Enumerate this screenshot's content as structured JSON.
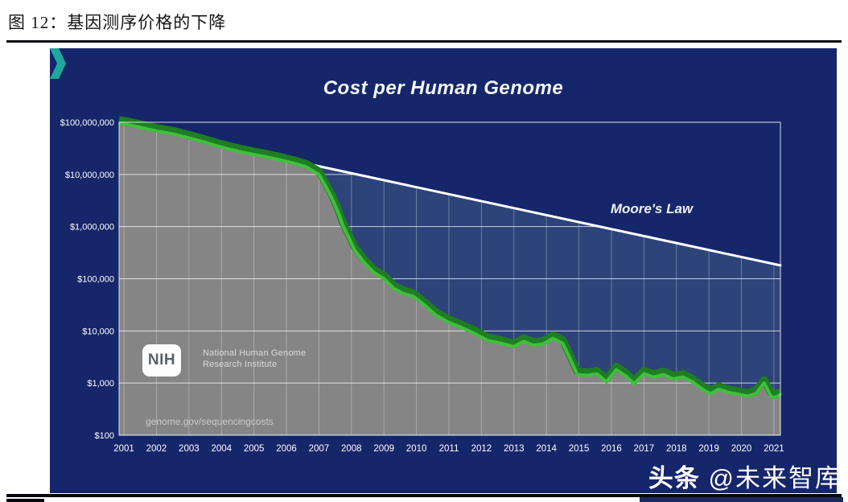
{
  "figure": {
    "label_title": "图 12：基因测序价格的下降"
  },
  "watermark": {
    "part1": "头条",
    "part2": " @未来智库"
  },
  "chart_data": {
    "type": "area",
    "title": "Cost per Human Genome",
    "y_scale": "log",
    "grid": true,
    "legend": false,
    "xlim": [
      2000.85,
      2021.2
    ],
    "ylim": [
      100,
      100000000
    ],
    "x_ticks": [
      "2001",
      "2002",
      "2003",
      "2004",
      "2005",
      "2006",
      "2007",
      "2008",
      "2009",
      "2010",
      "2011",
      "2012",
      "2013",
      "2014",
      "2015",
      "2016",
      "2017",
      "2018",
      "2019",
      "2020",
      "2021"
    ],
    "y_ticks": [
      {
        "label": "$100,000,000",
        "value": 100000000
      },
      {
        "label": "$10,000,000",
        "value": 10000000
      },
      {
        "label": "$1,000,000",
        "value": 1000000
      },
      {
        "label": "$100,000",
        "value": 100000
      },
      {
        "label": "$10,000",
        "value": 10000
      },
      {
        "label": "$1,000",
        "value": 1000
      },
      {
        "label": "$100",
        "value": 100
      }
    ],
    "series": [
      {
        "name": "Cost per Human Genome",
        "type": "line+area",
        "color_line": "#40bf3c",
        "color_line_dark": "#1f7d24",
        "fill_below": "#858585",
        "points": [
          [
            2000.85,
            95000000
          ],
          [
            2001.0,
            93000000
          ],
          [
            2001.5,
            80000000
          ],
          [
            2002.0,
            68000000
          ],
          [
            2002.5,
            60000000
          ],
          [
            2003.0,
            50000000
          ],
          [
            2003.45,
            42000000
          ],
          [
            2003.8,
            36000000
          ],
          [
            2004.2,
            31000000
          ],
          [
            2004.6,
            27000000
          ],
          [
            2005.0,
            24000000
          ],
          [
            2005.4,
            21500000
          ],
          [
            2005.8,
            19000000
          ],
          [
            2006.2,
            16500000
          ],
          [
            2006.6,
            14000000
          ],
          [
            2007.0,
            10000000
          ],
          [
            2007.2,
            6000000
          ],
          [
            2007.4,
            3500000
          ],
          [
            2007.6,
            1800000
          ],
          [
            2007.75,
            1000000
          ],
          [
            2007.9,
            650000
          ],
          [
            2008.1,
            350000
          ],
          [
            2008.4,
            200000
          ],
          [
            2008.7,
            130000
          ],
          [
            2009.0,
            100000
          ],
          [
            2009.3,
            65000
          ],
          [
            2009.6,
            52000
          ],
          [
            2009.9,
            46000
          ],
          [
            2010.2,
            33000
          ],
          [
            2010.6,
            20000
          ],
          [
            2011.0,
            14500
          ],
          [
            2011.4,
            11500
          ],
          [
            2011.8,
            8800
          ],
          [
            2012.2,
            6500
          ],
          [
            2012.6,
            5800
          ],
          [
            2013.0,
            5000
          ],
          [
            2013.3,
            6300
          ],
          [
            2013.6,
            5300
          ],
          [
            2013.9,
            5600
          ],
          [
            2014.2,
            7200
          ],
          [
            2014.5,
            5800
          ],
          [
            2014.7,
            3200
          ],
          [
            2014.95,
            1450
          ],
          [
            2015.25,
            1400
          ],
          [
            2015.55,
            1500
          ],
          [
            2015.85,
            1050
          ],
          [
            2016.15,
            1800
          ],
          [
            2016.45,
            1350
          ],
          [
            2016.7,
            970
          ],
          [
            2017.0,
            1500
          ],
          [
            2017.3,
            1300
          ],
          [
            2017.6,
            1450
          ],
          [
            2017.9,
            1200
          ],
          [
            2018.2,
            1300
          ],
          [
            2018.5,
            1050
          ],
          [
            2018.8,
            760
          ],
          [
            2019.05,
            620
          ],
          [
            2019.3,
            760
          ],
          [
            2019.6,
            660
          ],
          [
            2019.9,
            610
          ],
          [
            2020.2,
            560
          ],
          [
            2020.45,
            630
          ],
          [
            2020.7,
            1000
          ],
          [
            2020.9,
            570
          ],
          [
            2021.0,
            520
          ],
          [
            2021.2,
            600
          ]
        ]
      },
      {
        "name": "Moore's Law",
        "type": "line",
        "color": "#ffffff",
        "fill_between_cost": "#2e4379",
        "points": [
          [
            2003.45,
            43000000
          ],
          [
            2021.2,
            180000
          ]
        ]
      }
    ],
    "annotations": {
      "moores_law_label": "Moore's Law",
      "source_text": "genome.gov/sequencingcosts"
    },
    "logo": {
      "acronym": "NIH",
      "line1": "National Human Genome",
      "line2": "Research Institute"
    },
    "colors": {
      "panel_bg": "#16266a",
      "fill_gray": "#858585",
      "fill_blue": "#2e4379",
      "grid": "#ffffff",
      "text": "#ffffff"
    }
  }
}
